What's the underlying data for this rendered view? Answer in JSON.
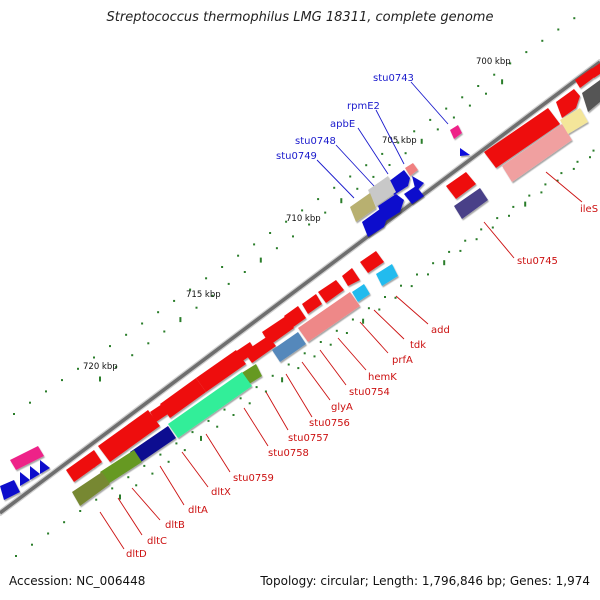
{
  "title": "Streptococcus thermophilus LMG 18311, complete genome",
  "footer": {
    "accession": "Accession: NC_006448",
    "summary": "Topology: circular; Length: 1,796,846 bp; Genes: 1,974"
  },
  "scale_labels": [
    "700 kbp",
    "705 kbp",
    "710 kbp",
    "715 kbp",
    "720 kbp"
  ],
  "labels_top": [
    "stu0743",
    "rpmE2",
    "apbE",
    "stu0748",
    "stu0749"
  ],
  "labels_bottom": [
    "ileS",
    "stu0745",
    "add",
    "tdk",
    "prfA",
    "hemK",
    "stu0754",
    "glyA",
    "stu0756",
    "stu0757",
    "stu0758",
    "stu0759",
    "dltX",
    "dltA",
    "dltB",
    "dltC",
    "dltD"
  ],
  "colors": {
    "top_label": "#1a1acc",
    "bottom_label": "#cc1111",
    "backbone": "#808080",
    "tick": "#1e7a1e"
  }
}
